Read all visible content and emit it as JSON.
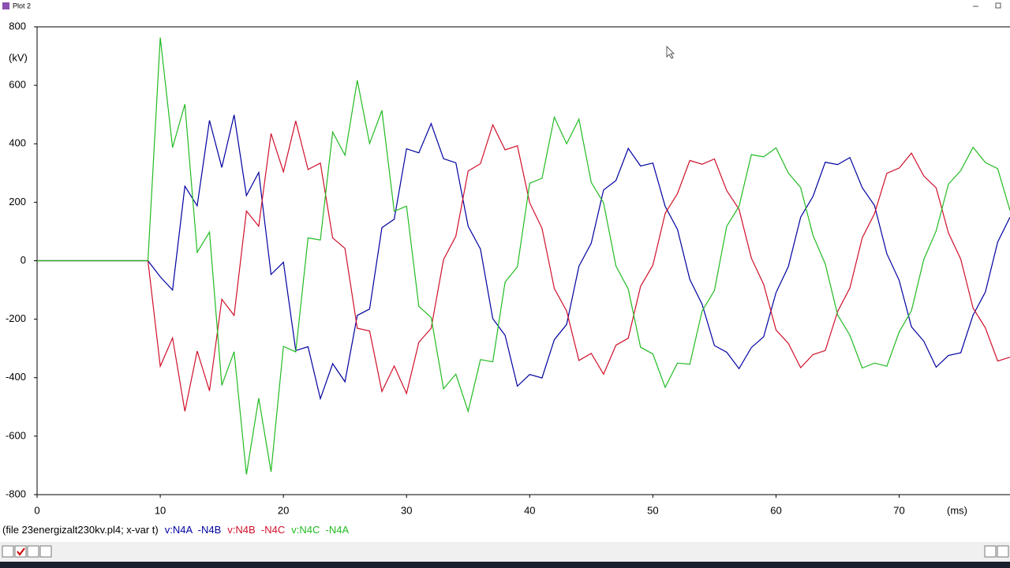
{
  "window": {
    "title": "Plot 2"
  },
  "chart_data": {
    "type": "line",
    "x_label": "(ms)",
    "y_label": "(kV)",
    "file_label": "(file 23energizalt230kv.pl4; x-var t)",
    "x": [
      0,
      9,
      10,
      11,
      12,
      13,
      14,
      15,
      16,
      17,
      18,
      19,
      20,
      21,
      22,
      23,
      24,
      25,
      26,
      27,
      28,
      29,
      30,
      31,
      32,
      33,
      34,
      35,
      36,
      37,
      38,
      39,
      40,
      41,
      42,
      43,
      44,
      45,
      46,
      47,
      48,
      49,
      50,
      51,
      52,
      53,
      54,
      55,
      56,
      57,
      58,
      59,
      60,
      61,
      62,
      63,
      64,
      65,
      66,
      67,
      68,
      69,
      70,
      71,
      72,
      73,
      74,
      75,
      76,
      77,
      78,
      79
    ],
    "series": [
      {
        "name": "v:N4A  -N4B",
        "color": "#0000a0",
        "values": [
          0,
          0,
          -55,
          -100,
          255,
          188,
          480,
          319,
          499,
          223,
          302,
          -47,
          -5,
          -307,
          -294,
          -472,
          -352,
          -414,
          -187,
          -165,
          113,
          142,
          383,
          369,
          469,
          349,
          335,
          118,
          40,
          -198,
          -255,
          -429,
          -389,
          -401,
          -270,
          -218,
          -19,
          60,
          242,
          274,
          384,
          324,
          334,
          186,
          107,
          -64,
          -149,
          -290,
          -313,
          -369,
          -297,
          -260,
          -109,
          -20,
          149,
          220,
          337,
          329,
          353,
          250,
          189,
          24,
          -67,
          -226,
          -275,
          -364,
          -324,
          -315,
          -186,
          -107,
          64,
          149
        ]
      },
      {
        "name": "v:N4B  -N4C",
        "color": "#d0102a",
        "values": [
          0,
          0,
          -361,
          -264,
          -515,
          -309,
          -445,
          -132,
          -187,
          170,
          118,
          435,
          304,
          478,
          312,
          334,
          78,
          42,
          -231,
          -240,
          -447,
          -360,
          -454,
          -279,
          -231,
          4,
          84,
          307,
          332,
          465,
          379,
          393,
          198,
          111,
          -95,
          -172,
          -341,
          -317,
          -388,
          -289,
          -265,
          -88,
          -15,
          162,
          230,
          343,
          330,
          348,
          240,
          176,
          9,
          -81,
          -237,
          -283,
          -366,
          -321,
          -307,
          -174,
          -93,
          78,
          161,
          299,
          317,
          368,
          290,
          249,
          95,
          5,
          -162,
          -230,
          -343,
          -330
        ]
      },
      {
        "name": "v:N4C  -N4A",
        "color": "#22bb22",
        "values": [
          0,
          0,
          763,
          387,
          535,
          29,
          98,
          -426,
          -311,
          -731,
          -470,
          -722,
          -293,
          -312,
          78,
          71,
          440,
          361,
          617,
          401,
          514,
          169,
          187,
          -156,
          -194,
          -438,
          -388,
          -515,
          -338,
          -346,
          -73,
          -21,
          265,
          282,
          491,
          400,
          484,
          268,
          198,
          -18,
          -97,
          -296,
          -319,
          -433,
          -350,
          -354,
          -172,
          -102,
          118,
          186,
          363,
          355,
          386,
          300,
          250,
          87,
          -11,
          -185,
          -255,
          -367,
          -350,
          -361,
          -244,
          -171,
          4,
          102,
          262,
          308,
          388,
          336,
          315,
          172
        ]
      }
    ],
    "xlim": [
      0,
      79
    ],
    "ylim": [
      -800,
      800
    ],
    "xticks": [
      0,
      10,
      20,
      30,
      40,
      50,
      60,
      70
    ],
    "yticks": [
      -800,
      -600,
      -400,
      -200,
      0,
      200,
      400,
      600,
      800
    ]
  }
}
